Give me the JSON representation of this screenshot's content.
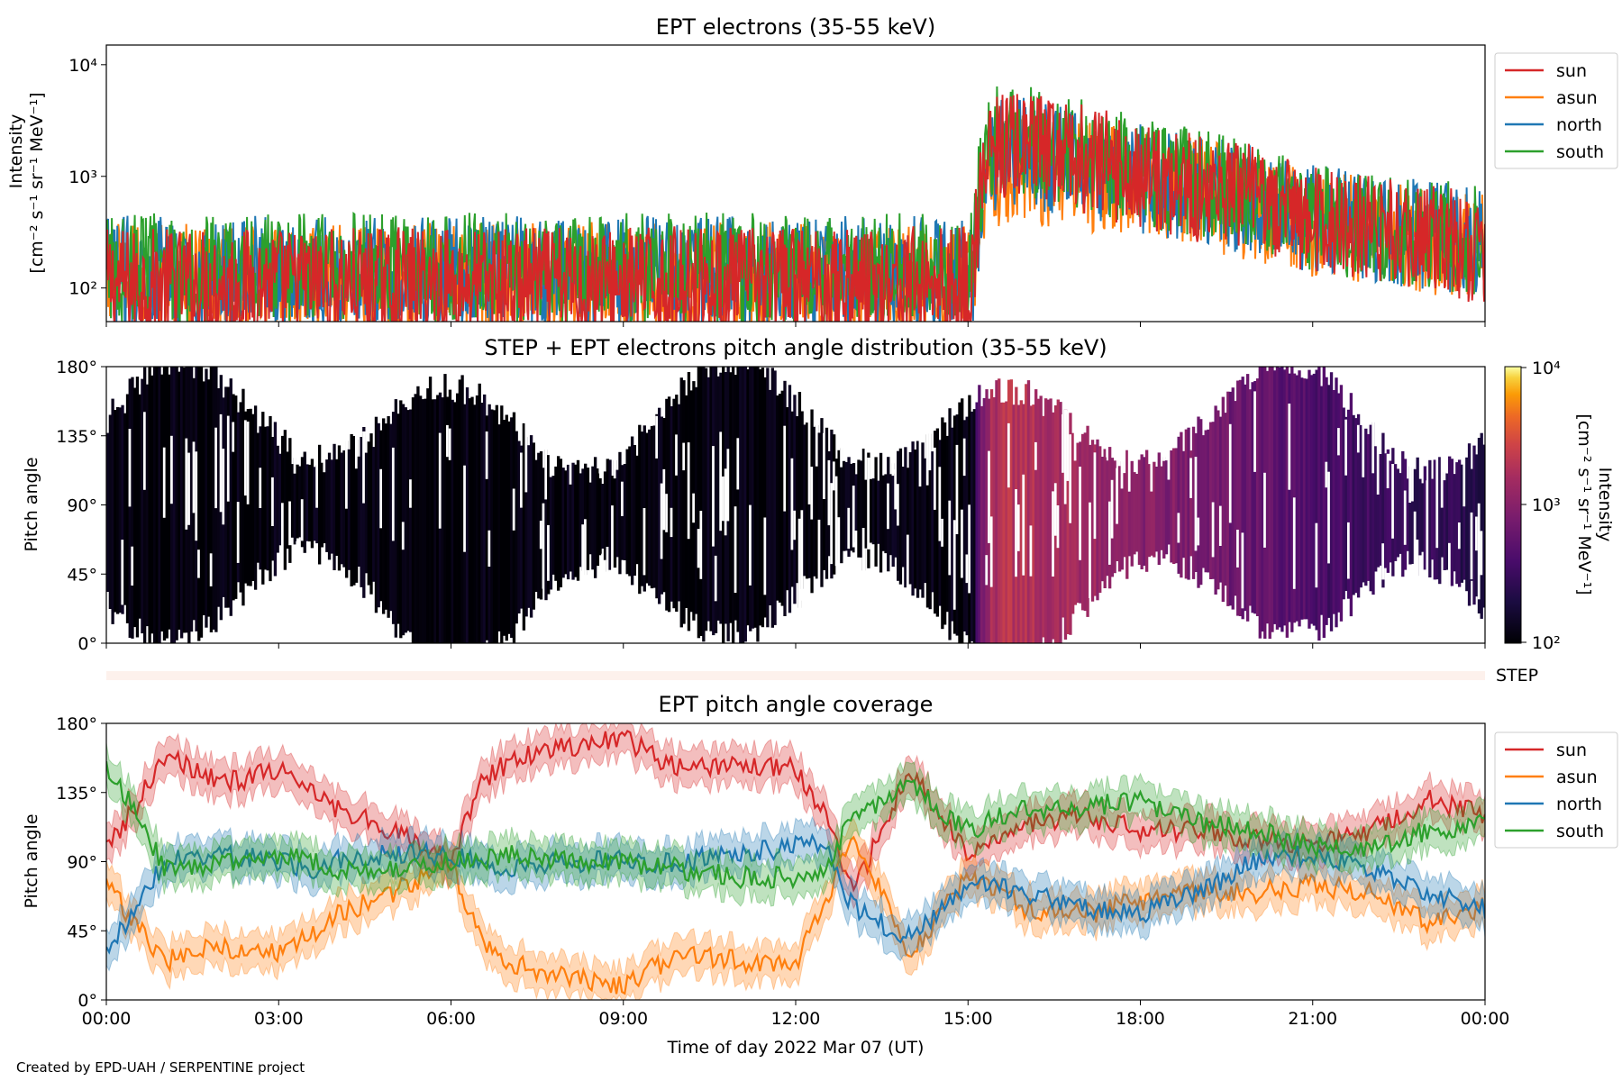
{
  "footer": {
    "credit": "Created by EPD-UAH / SERPENTINE project"
  },
  "colors": {
    "sun": "#d62728",
    "asun": "#ff7f0e",
    "north": "#1f77b4",
    "south": "#2ca02c",
    "step_band": "#fdf1ec"
  },
  "chart_data": [
    {
      "type": "line",
      "title": "EPT electrons (35-55 keV)",
      "ylabel_line1": "Intensity",
      "ylabel_line2": "[cm⁻² s⁻¹ sr⁻¹ MeV⁻¹]",
      "yscale": "log",
      "ylim": [
        50,
        15000
      ],
      "yticks": [
        {
          "value": 100,
          "label": "10²"
        },
        {
          "value": 1000,
          "label": "10³"
        },
        {
          "value": 10000,
          "label": "10⁴"
        }
      ],
      "xlim_hours": [
        0,
        24
      ],
      "legend": [
        "sun",
        "asun",
        "north",
        "south"
      ],
      "legend_position": "right-outside-top",
      "series": [
        {
          "name": "sun",
          "profile_hours": [
            0,
            15.1,
            15.2,
            15.4,
            15.7,
            18,
            21,
            24
          ],
          "profile_values": [
            110,
            115,
            600,
            1600,
            1900,
            1000,
            400,
            220
          ]
        },
        {
          "name": "asun",
          "profile_hours": [
            0,
            15.1,
            15.2,
            15.4,
            15.7,
            18,
            21,
            24
          ],
          "profile_values": [
            120,
            125,
            500,
            900,
            1200,
            850,
            380,
            230
          ]
        },
        {
          "name": "north",
          "profile_hours": [
            0,
            15.1,
            15.2,
            15.4,
            15.7,
            18,
            21,
            24
          ],
          "profile_values": [
            140,
            140,
            400,
            1300,
            1700,
            950,
            400,
            240
          ]
        },
        {
          "name": "south",
          "profile_hours": [
            0,
            15.1,
            15.2,
            15.4,
            15.7,
            18,
            21,
            24
          ],
          "profile_values": [
            150,
            150,
            700,
            2000,
            2200,
            1100,
            420,
            250
          ]
        }
      ]
    },
    {
      "type": "heatmap",
      "title": "STEP + EPT electrons pitch angle distribution (35-55 keV)",
      "ylabel": "Pitch angle",
      "ylim": [
        0,
        180
      ],
      "yticks": [
        "0°",
        "45°",
        "90°",
        "135°",
        "180°"
      ],
      "colorbar_label_line1": "Intensity",
      "colorbar_label_line2": "[cm⁻² s⁻¹ sr⁻¹ MeV⁻¹]",
      "colorbar_scale": "log",
      "colorbar_range": [
        100,
        10000
      ],
      "colorbar_ticks": [
        "10²",
        "10³",
        "10⁴"
      ],
      "colormap": "inferno",
      "xlim_hours": [
        0,
        24
      ]
    },
    {
      "type": "band",
      "label": "STEP",
      "xlim_hours": [
        0,
        24
      ]
    },
    {
      "type": "line",
      "title": "EPT pitch angle coverage",
      "ylabel": "Pitch angle",
      "ylim": [
        0,
        180
      ],
      "yticks": [
        "0°",
        "45°",
        "90°",
        "135°",
        "180°"
      ],
      "xlabel": "Time of day 2022 Mar 07 (UT)",
      "xticks": [
        "00:00",
        "03:00",
        "06:00",
        "09:00",
        "12:00",
        "15:00",
        "18:00",
        "21:00",
        "00:00"
      ],
      "xlim_hours": [
        0,
        24
      ],
      "legend": [
        "sun",
        "asun",
        "north",
        "south"
      ],
      "legend_position": "right-outside-top",
      "band_width_deg": 12,
      "series": [
        {
          "name": "sun",
          "hours": [
            0,
            0.5,
            1,
            2,
            3,
            3.5,
            4,
            5,
            6,
            6.5,
            7,
            8,
            9,
            10,
            11,
            12,
            12.5,
            13,
            14,
            15,
            16,
            17,
            18,
            19,
            20,
            21,
            22,
            23,
            24
          ],
          "values": [
            100,
            125,
            160,
            140,
            150,
            140,
            125,
            110,
            90,
            140,
            155,
            165,
            170,
            150,
            155,
            150,
            120,
            70,
            150,
            95,
            115,
            120,
            110,
            110,
            105,
            100,
            110,
            130,
            120
          ]
        },
        {
          "name": "asun",
          "hours": [
            0,
            0.5,
            1,
            2,
            3,
            3.5,
            4,
            5,
            6,
            6.5,
            7,
            8,
            9,
            10,
            11,
            12,
            12.5,
            13,
            14,
            15,
            16,
            17,
            18,
            19,
            20,
            21,
            22,
            23,
            24
          ],
          "values": [
            75,
            50,
            25,
            35,
            30,
            40,
            55,
            70,
            90,
            40,
            25,
            15,
            10,
            30,
            25,
            25,
            60,
            110,
            30,
            80,
            60,
            55,
            65,
            70,
            70,
            75,
            70,
            50,
            60
          ]
        },
        {
          "name": "north",
          "hours": [
            0,
            0.5,
            1,
            2,
            3,
            3.5,
            4,
            5,
            6,
            6.5,
            7,
            8,
            9,
            10,
            11,
            12,
            12.5,
            13,
            14,
            15,
            16,
            17,
            18,
            19,
            20,
            21,
            22,
            23,
            24
          ],
          "values": [
            30,
            60,
            90,
            95,
            90,
            85,
            90,
            95,
            95,
            90,
            85,
            90,
            90,
            90,
            95,
            100,
            100,
            60,
            40,
            75,
            70,
            60,
            55,
            70,
            90,
            95,
            85,
            70,
            60
          ]
        },
        {
          "name": "south",
          "hours": [
            0,
            0.5,
            1,
            2,
            3,
            3.5,
            4,
            5,
            6,
            6.5,
            7,
            8,
            9,
            10,
            11,
            12,
            12.5,
            13,
            14,
            15,
            16,
            17,
            18,
            19,
            20,
            21,
            22,
            23,
            24
          ],
          "values": [
            150,
            125,
            85,
            90,
            95,
            90,
            85,
            85,
            90,
            90,
            95,
            90,
            90,
            85,
            80,
            80,
            85,
            120,
            140,
            110,
            125,
            125,
            130,
            115,
            110,
            100,
            100,
            110,
            115
          ]
        }
      ]
    }
  ]
}
